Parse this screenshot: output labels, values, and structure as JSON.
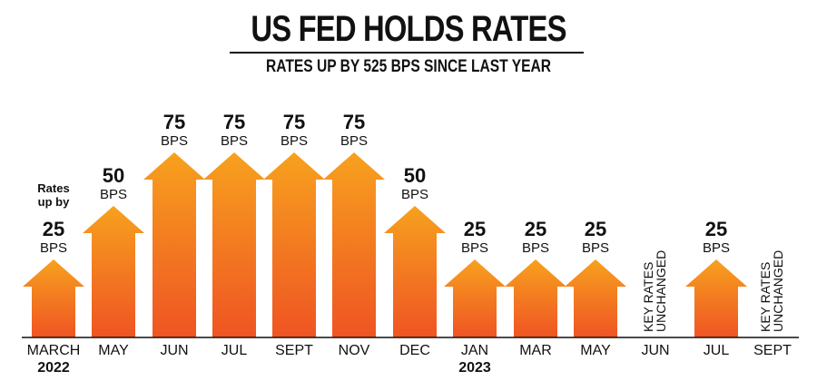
{
  "chart_data": {
    "type": "bar",
    "title": "US FED HOLDS RATES",
    "subtitle": "RATES UP BY 525 BPS SINCE LAST YEAR",
    "annotation": "Rates up by",
    "unit": "BPS",
    "unchanged_label_line1": "KEY RATES",
    "unchanged_label_line2": "UNCHANGED",
    "categories": [
      "MARCH",
      "MAY",
      "JUN",
      "JUL",
      "SEPT",
      "NOV",
      "DEC",
      "JAN",
      "MAR",
      "MAY",
      "JUN",
      "JUL",
      "SEPT"
    ],
    "years": {
      "0": "2022",
      "7": "2023"
    },
    "values": [
      25,
      50,
      75,
      75,
      75,
      75,
      50,
      25,
      25,
      25,
      0,
      25,
      0
    ],
    "value_labels": [
      "25",
      "50",
      "75",
      "75",
      "75",
      "75",
      "50",
      "25",
      "25",
      "25",
      "",
      "25",
      ""
    ],
    "ylim": [
      0,
      75
    ],
    "colors": {
      "top": "#F7A11E",
      "bottom": "#EF5423",
      "text": "#111111",
      "axis": "#111111"
    }
  }
}
